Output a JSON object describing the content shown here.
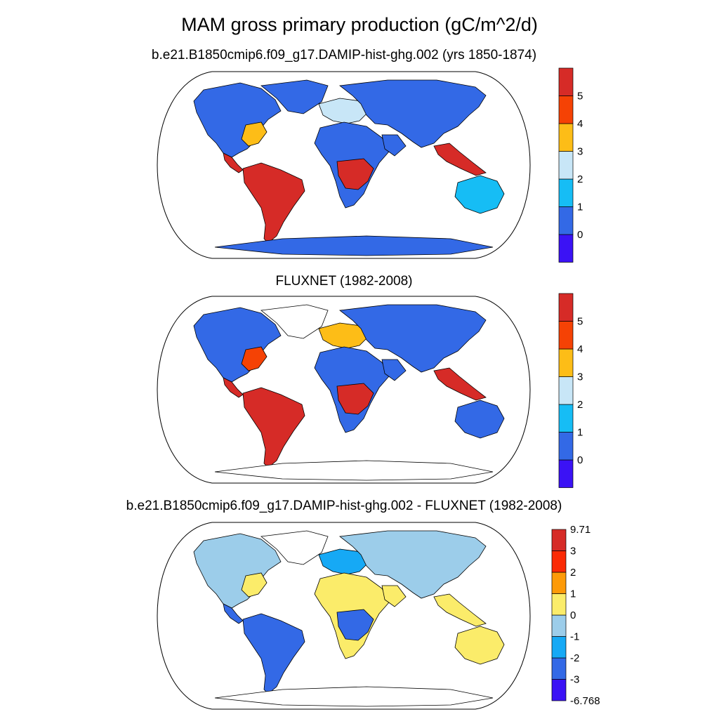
{
  "figure": {
    "title": "MAM gross primary production (gC/m^2/d)"
  },
  "panels": [
    {
      "title": "b.e21.B1850cmip6.f09_g17.DAMIP-hist-ghg.002 (yrs 1850-1874)",
      "colorbar": {
        "colors": [
          "#3b12f5",
          "#3369e6",
          "#16bdf5",
          "#c8e6f7",
          "#fdbd17",
          "#f54205",
          "#d62b27"
        ],
        "labels": [
          "0",
          "1",
          "2",
          "3",
          "4",
          "5"
        ]
      },
      "regions": {
        "north_america": "#3369e6",
        "south_america": "#d62b27",
        "africa": "#3369e6",
        "eurasia": "#3369e6",
        "australia": "#16bdf5",
        "antarctica": "#3369e6",
        "greenland": "#3369e6",
        "asia_tropics": "#d62b27",
        "central_africa": "#d62b27",
        "us_east": "#fdbd17",
        "europe": "#c8e6f7"
      }
    },
    {
      "title": "FLUXNET (1982-2008)",
      "colorbar": {
        "colors": [
          "#3b12f5",
          "#3369e6",
          "#16bdf5",
          "#c8e6f7",
          "#fdbd17",
          "#f54205",
          "#d62b27"
        ],
        "labels": [
          "0",
          "1",
          "2",
          "3",
          "4",
          "5"
        ]
      },
      "regions": {
        "north_america": "#3369e6",
        "south_america": "#d62b27",
        "africa": "#3369e6",
        "eurasia": "#3369e6",
        "australia": "#3369e6",
        "antarctica": "none",
        "greenland": "none",
        "asia_tropics": "#d62b27",
        "central_africa": "#d62b27",
        "us_east": "#f54205",
        "europe": "#fdbd17"
      }
    },
    {
      "title": "b.e21.B1850cmip6.f09_g17.DAMIP-hist-ghg.002 - FLUXNET (1982-2008)",
      "colorbar": {
        "colors": [
          "#3b12f5",
          "#3369e6",
          "#16a9f5",
          "#9ccdea",
          "#fbec6a",
          "#fd9a08",
          "#fb2a05",
          "#d62b27"
        ],
        "labels": [
          "-6.768",
          "-3",
          "-2",
          "-1",
          "0",
          "1",
          "2",
          "3",
          "9.71"
        ]
      },
      "regions": {
        "north_america": "#9ccdea",
        "south_america": "#3369e6",
        "africa": "#fbec6a",
        "eurasia": "#9ccdea",
        "australia": "#fbec6a",
        "antarctica": "none",
        "greenland": "none",
        "asia_tropics": "#fbec6a",
        "central_africa": "#3369e6",
        "us_east": "#fbec6a",
        "europe": "#16a9f5"
      }
    }
  ]
}
